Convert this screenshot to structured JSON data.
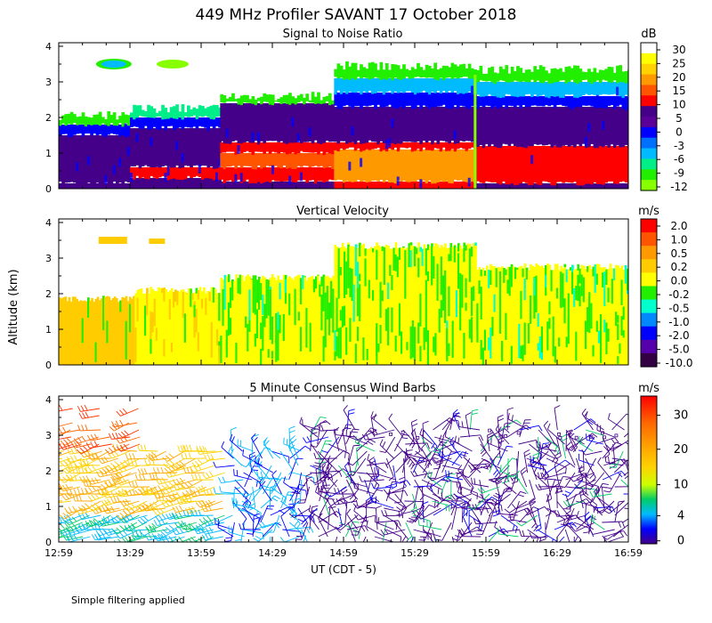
{
  "title": "449 MHz Profiler SAVANT 17 October 2018",
  "ylabel": "Altitude (km)",
  "xlabel": "UT  (CDT - 5)",
  "footnote": "Simple filtering applied",
  "x_ticks": [
    "12:59",
    "13:29",
    "13:59",
    "14:29",
    "14:59",
    "15:29",
    "15:59",
    "16:29",
    "16:59"
  ],
  "y_ticks": [
    "0",
    "1",
    "2",
    "3",
    "4"
  ],
  "chart_data": [
    {
      "type": "heatmap",
      "title": "Signal to Noise Ratio",
      "colorbar_unit": "dB",
      "colorbar_labels": [
        "30",
        "25",
        "20",
        "15",
        "10",
        "5",
        "0",
        "-3",
        "-6",
        "-9",
        "-12"
      ],
      "colorbar_colors": [
        "#ffffff",
        "#ffff00",
        "#ffd200",
        "#ff9900",
        "#ff5500",
        "#ff0000",
        "#440088",
        "#5a0099",
        "#0000ff",
        "#0070ff",
        "#00bbff",
        "#00ee88",
        "#22ee00",
        "#88ff00"
      ],
      "x_range": [
        "12:59",
        "16:59"
      ],
      "ylim": [
        0,
        4.1
      ],
      "regions": [
        {
          "t0": 0,
          "t1": 75,
          "top": 2.05,
          "layers": [
            [
              0,
              0.15,
              "#440088"
            ],
            [
              0.15,
              1.5,
              "#440088"
            ],
            [
              1.5,
              1.8,
              "#0000ff"
            ],
            [
              1.8,
              2.05,
              "#22ee00"
            ]
          ]
        },
        {
          "t0": 75,
          "t1": 170,
          "top": 2.25,
          "layers": [
            [
              0,
              0.3,
              "#440088"
            ],
            [
              0.3,
              0.6,
              "#ff0000"
            ],
            [
              0.6,
              1.7,
              "#440088"
            ],
            [
              1.7,
              2.0,
              "#0000ff"
            ],
            [
              2.0,
              2.25,
              "#00ee88"
            ]
          ]
        },
        {
          "t0": 170,
          "t1": 290,
          "top": 2.6,
          "layers": [
            [
              0,
              0.2,
              "#440088"
            ],
            [
              0.2,
              0.6,
              "#ff0000"
            ],
            [
              0.6,
              1.0,
              "#ff5500"
            ],
            [
              1.0,
              1.3,
              "#ff0000"
            ],
            [
              1.3,
              2.4,
              "#440088"
            ],
            [
              2.4,
              2.6,
              "#22ee00"
            ]
          ]
        },
        {
          "t0": 290,
          "t1": 440,
          "top": 3.45,
          "layers": [
            [
              0,
              0.2,
              "#ff0000"
            ],
            [
              0.2,
              1.1,
              "#ff9900"
            ],
            [
              1.1,
              1.3,
              "#ff0000"
            ],
            [
              1.3,
              2.3,
              "#440088"
            ],
            [
              2.3,
              2.7,
              "#0000ff"
            ],
            [
              2.7,
              3.1,
              "#00bbff"
            ],
            [
              3.1,
              3.45,
              "#22ee00"
            ]
          ]
        },
        {
          "t0": 440,
          "t1": 600,
          "top": 3.35,
          "layers": [
            [
              0,
              0.15,
              "#440088"
            ],
            [
              0.15,
              1.2,
              "#ff0000"
            ],
            [
              1.2,
              2.3,
              "#440088"
            ],
            [
              2.3,
              2.6,
              "#0000ff"
            ],
            [
              2.6,
              3.0,
              "#00bbff"
            ],
            [
              3.0,
              3.35,
              "#22ee00"
            ]
          ]
        }
      ]
    },
    {
      "type": "heatmap",
      "title": "Vertical Velocity",
      "colorbar_unit": "m/s",
      "colorbar_labels": [
        "2.0",
        "1.0",
        "0.5",
        "0.2",
        "0.0",
        "-0.2",
        "-0.5",
        "-1.0",
        "-2.0",
        "-5.0",
        "-10.0"
      ],
      "colorbar_colors": [
        "#ff0000",
        "#ff5500",
        "#ff9900",
        "#ffcc00",
        "#ffff00",
        "#22ee00",
        "#00ffcc",
        "#0088ff",
        "#0000ff",
        "#5500aa",
        "#330044"
      ],
      "x_range": [
        "12:59",
        "16:59"
      ],
      "ylim": [
        0,
        4.1
      ],
      "regions": [
        {
          "t0": 0,
          "t1": 80,
          "top": 1.85,
          "base": "#ffcc00"
        },
        {
          "t0": 80,
          "t1": 170,
          "top": 2.1,
          "base": "#ffff00"
        },
        {
          "t0": 170,
          "t1": 290,
          "top": 2.45,
          "base": "#ffff00"
        },
        {
          "t0": 290,
          "t1": 440,
          "top": 3.35,
          "base": "#ffff00"
        },
        {
          "t0": 440,
          "t1": 600,
          "top": 2.75,
          "base": "#ffff00"
        }
      ]
    },
    {
      "type": "scatter",
      "title": "5 Minute Consensus Wind Barbs",
      "colorbar_unit": "m/s",
      "colorbar_labels": [
        "30",
        "20",
        "10",
        "4",
        "0"
      ],
      "colorbar_colors": [
        "#ff0000",
        "#ff6600",
        "#ffaa00",
        "#ffd200",
        "#ccff00",
        "#00cc66",
        "#00bbff",
        "#0000ff",
        "#440088"
      ],
      "x_range": [
        "12:59",
        "16:59"
      ],
      "ylim": [
        0,
        4.1
      ]
    }
  ]
}
